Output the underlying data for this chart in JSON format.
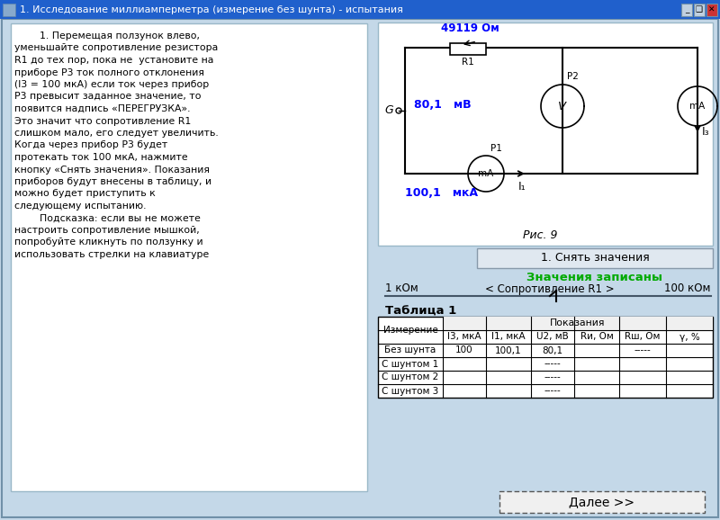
{
  "title": "1. Исследование миллиамперметра (измерение без шунта) - испытания",
  "bg_color": "#c4d8e8",
  "title_bar_color": "#2060cc",
  "left_text_lines": [
    "        1. Перемещая ползунок влево,",
    "уменьшайте сопротивление резистора",
    "R1 до тех пор, пока не  установите на",
    "приборе P3 ток полного отклонения",
    "(I3 = 100 мкА) если ток через прибор",
    "P3 превысит заданное значение, то",
    "появится надпись «ПЕРЕГРУЗКА».",
    "Это значит что сопротивление R1",
    "слишком мало, его следует увеличить.",
    "Когда через прибор P3 будет",
    "протекать ток 100 мкА, нажмите",
    "кнопку «Снять значения». Показания",
    "приборов будут внесены в таблицу, и",
    "можно будет приступить к",
    "следующему испытанию.",
    "        Подсказка: если вы не можете",
    "настроить сопротивление мышкой,",
    "попробуйте кликнуть по ползунку и",
    "использовать стрелки на клавиатуре"
  ],
  "button_text": "1. Снять значения",
  "status_text": "Значения записаны",
  "status_color": "#00aa00",
  "slider_left": "1 кОм",
  "slider_right": "100 кОм",
  "slider_label": "< Сопротивление R1 >",
  "table_title": "Таблица 1",
  "col_header_span": "Показания",
  "col1": "Измерение",
  "col2": "I3, мкА",
  "col3": "I1, мкА",
  "col4": "U2, мВ",
  "col5": "Rи, Ом",
  "col6": "Rш, Ом",
  "col7": "γ, %",
  "rows": [
    [
      "Без шунта",
      "100",
      "100,1",
      "80,1",
      "",
      "-----",
      ""
    ],
    [
      "С шунтом 1",
      "",
      "",
      "-----",
      "",
      "",
      ""
    ],
    [
      "С шунтом 2",
      "",
      "",
      "-----",
      "",
      "",
      ""
    ],
    [
      "С шунтом 3",
      "",
      "",
      "-----",
      "",
      "",
      ""
    ]
  ],
  "bottom_button": "Далее >>",
  "circuit_label": "Рис. 9",
  "val_49119": "49119 Ом",
  "val_80_1": "80,1   мВ",
  "val_100mka": "100 мкА",
  "val_100_1": "100,1   мкА",
  "blue_color": "#0000ff"
}
